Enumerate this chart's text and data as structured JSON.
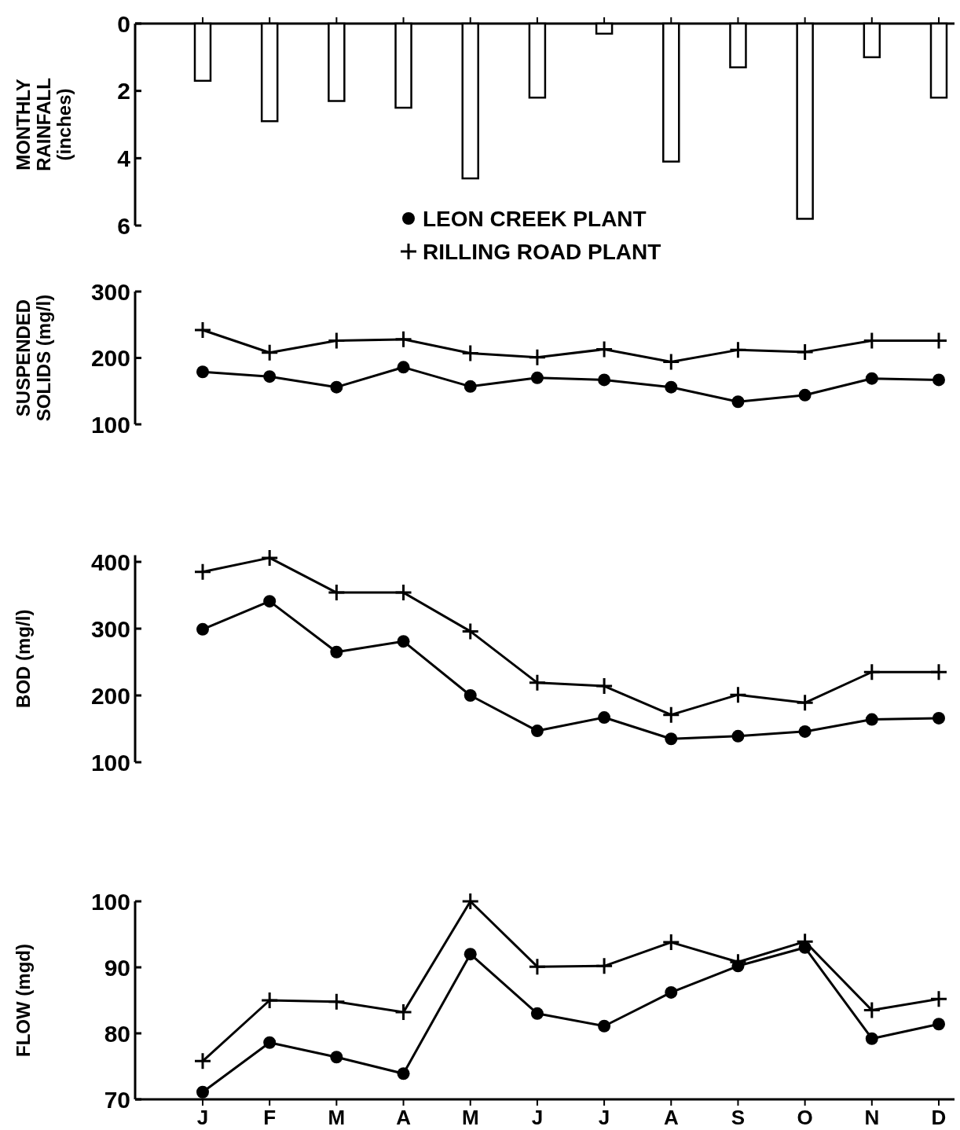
{
  "chart_data": [
    {
      "type": "bar",
      "ylabel": "MONTHLY\nRAINFALL\n(inches)",
      "categories": [
        null,
        null,
        null,
        null,
        null,
        null,
        null,
        null,
        null,
        null,
        null,
        null
      ],
      "values": [
        1.7,
        2.9,
        2.3,
        2.5,
        4.6,
        2.2,
        0.3,
        4.1,
        1.3,
        5.8,
        1.0,
        2.2
      ],
      "color": "#ffffff",
      "ylim": [
        6,
        0
      ],
      "yticks": [
        0,
        2,
        4,
        6
      ],
      "grid": false,
      "tick_labels": "y"
    },
    {
      "type": "line",
      "ylabel": "SUSPENDED\nSOLIDS (mg/l)",
      "categories": [
        null,
        null,
        null,
        null,
        null,
        null,
        null,
        null,
        null,
        null,
        null,
        null
      ],
      "series": [
        {
          "name": "LEON CREEK PLANT",
          "color": "#000000",
          "marker": "circle",
          "values": [
            179,
            172,
            156,
            186,
            157,
            170,
            167,
            156,
            134,
            144,
            169,
            167
          ]
        },
        {
          "name": "RILLING ROAD PLANT",
          "color": "#000000",
          "marker": "cross",
          "values": [
            242,
            208,
            226,
            228,
            207,
            201,
            213,
            194,
            212,
            209,
            226,
            226
          ]
        }
      ],
      "ylim": [
        100,
        300
      ],
      "yticks": [
        100,
        200,
        300
      ],
      "grid": false,
      "legend": "top",
      "tick_labels": "y"
    },
    {
      "type": "line",
      "ylabel": "BOD (mg/l)",
      "categories": [
        null,
        null,
        null,
        null,
        null,
        null,
        null,
        null,
        null,
        null,
        null,
        null
      ],
      "series": [
        {
          "color": "#000000",
          "marker": "circle",
          "values": [
            299,
            341,
            265,
            281,
            200,
            147,
            167,
            135,
            139,
            146,
            164,
            166
          ]
        },
        {
          "color": "#000000",
          "marker": "cross",
          "values": [
            385,
            406,
            354,
            354,
            296,
            219,
            214,
            171,
            201,
            189,
            235,
            235
          ]
        }
      ],
      "ylim": [
        100,
        410
      ],
      "yticks": [
        100,
        200,
        300,
        400
      ],
      "grid": false,
      "tick_labels": "y"
    },
    {
      "type": "line",
      "ylabel": "FLOW (mgd)",
      "categories": [
        "J",
        "F",
        "M",
        "A",
        "M",
        "J",
        "J",
        "A",
        "S",
        "O",
        "N",
        "D"
      ],
      "series": [
        {
          "color": "#000000",
          "marker": "circle",
          "values": [
            71.1,
            78.6,
            76.4,
            73.9,
            92.0,
            83.0,
            81.1,
            86.2,
            90.2,
            93.0,
            79.2,
            81.4
          ]
        },
        {
          "color": "#000000",
          "marker": "cross",
          "values": [
            75.8,
            85.0,
            84.8,
            83.2,
            100,
            90.1,
            90.2,
            93.8,
            90.8,
            93.9,
            83.5,
            85.2
          ]
        }
      ],
      "ylim": [
        70,
        100
      ],
      "yticks": [
        70,
        80,
        90,
        100
      ],
      "grid": false
    }
  ]
}
